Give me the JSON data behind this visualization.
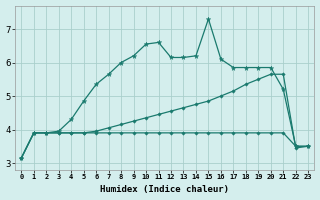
{
  "xlabel": "Humidex (Indice chaleur)",
  "bg_color": "#d4eeed",
  "grid_color": "#aacfcc",
  "line_color": "#1a7a6e",
  "xlim": [
    -0.5,
    23.5
  ],
  "ylim": [
    2.8,
    7.7
  ],
  "xticks": [
    0,
    1,
    2,
    3,
    4,
    5,
    6,
    7,
    8,
    9,
    10,
    11,
    12,
    13,
    14,
    15,
    16,
    17,
    18,
    19,
    20,
    21,
    22,
    23
  ],
  "yticks": [
    3,
    4,
    5,
    6,
    7
  ],
  "line1_x": [
    0,
    1,
    2,
    3,
    4,
    5,
    6,
    7,
    8,
    9,
    10,
    11,
    12,
    13,
    14,
    15,
    16,
    17,
    18,
    19,
    20,
    21,
    22,
    23
  ],
  "line1_y": [
    3.15,
    3.9,
    3.9,
    3.95,
    4.3,
    4.85,
    5.35,
    5.65,
    6.0,
    6.2,
    6.55,
    6.6,
    6.15,
    6.15,
    6.2,
    7.3,
    6.1,
    5.85,
    5.85,
    5.85,
    5.85,
    5.2,
    3.5,
    3.5
  ],
  "line2_x": [
    0,
    1,
    2,
    3,
    4,
    5,
    6,
    7,
    8,
    9,
    10,
    11,
    12,
    13,
    14,
    15,
    16,
    17,
    18,
    19,
    20,
    21,
    22,
    23
  ],
  "line2_y": [
    3.15,
    3.9,
    3.9,
    3.9,
    3.9,
    3.9,
    3.95,
    4.05,
    4.15,
    4.25,
    4.35,
    4.45,
    4.55,
    4.65,
    4.75,
    4.85,
    5.0,
    5.15,
    5.35,
    5.5,
    5.65,
    5.65,
    3.45,
    3.5
  ],
  "line3_x": [
    0,
    1,
    2,
    3,
    4,
    5,
    6,
    7,
    8,
    9,
    10,
    11,
    12,
    13,
    14,
    15,
    16,
    17,
    18,
    19,
    20,
    21,
    22,
    23
  ],
  "line3_y": [
    3.15,
    3.9,
    3.9,
    3.9,
    3.9,
    3.9,
    3.9,
    3.9,
    3.9,
    3.9,
    3.9,
    3.9,
    3.9,
    3.9,
    3.9,
    3.9,
    3.9,
    3.9,
    3.9,
    3.9,
    3.9,
    3.9,
    3.5,
    3.5
  ]
}
